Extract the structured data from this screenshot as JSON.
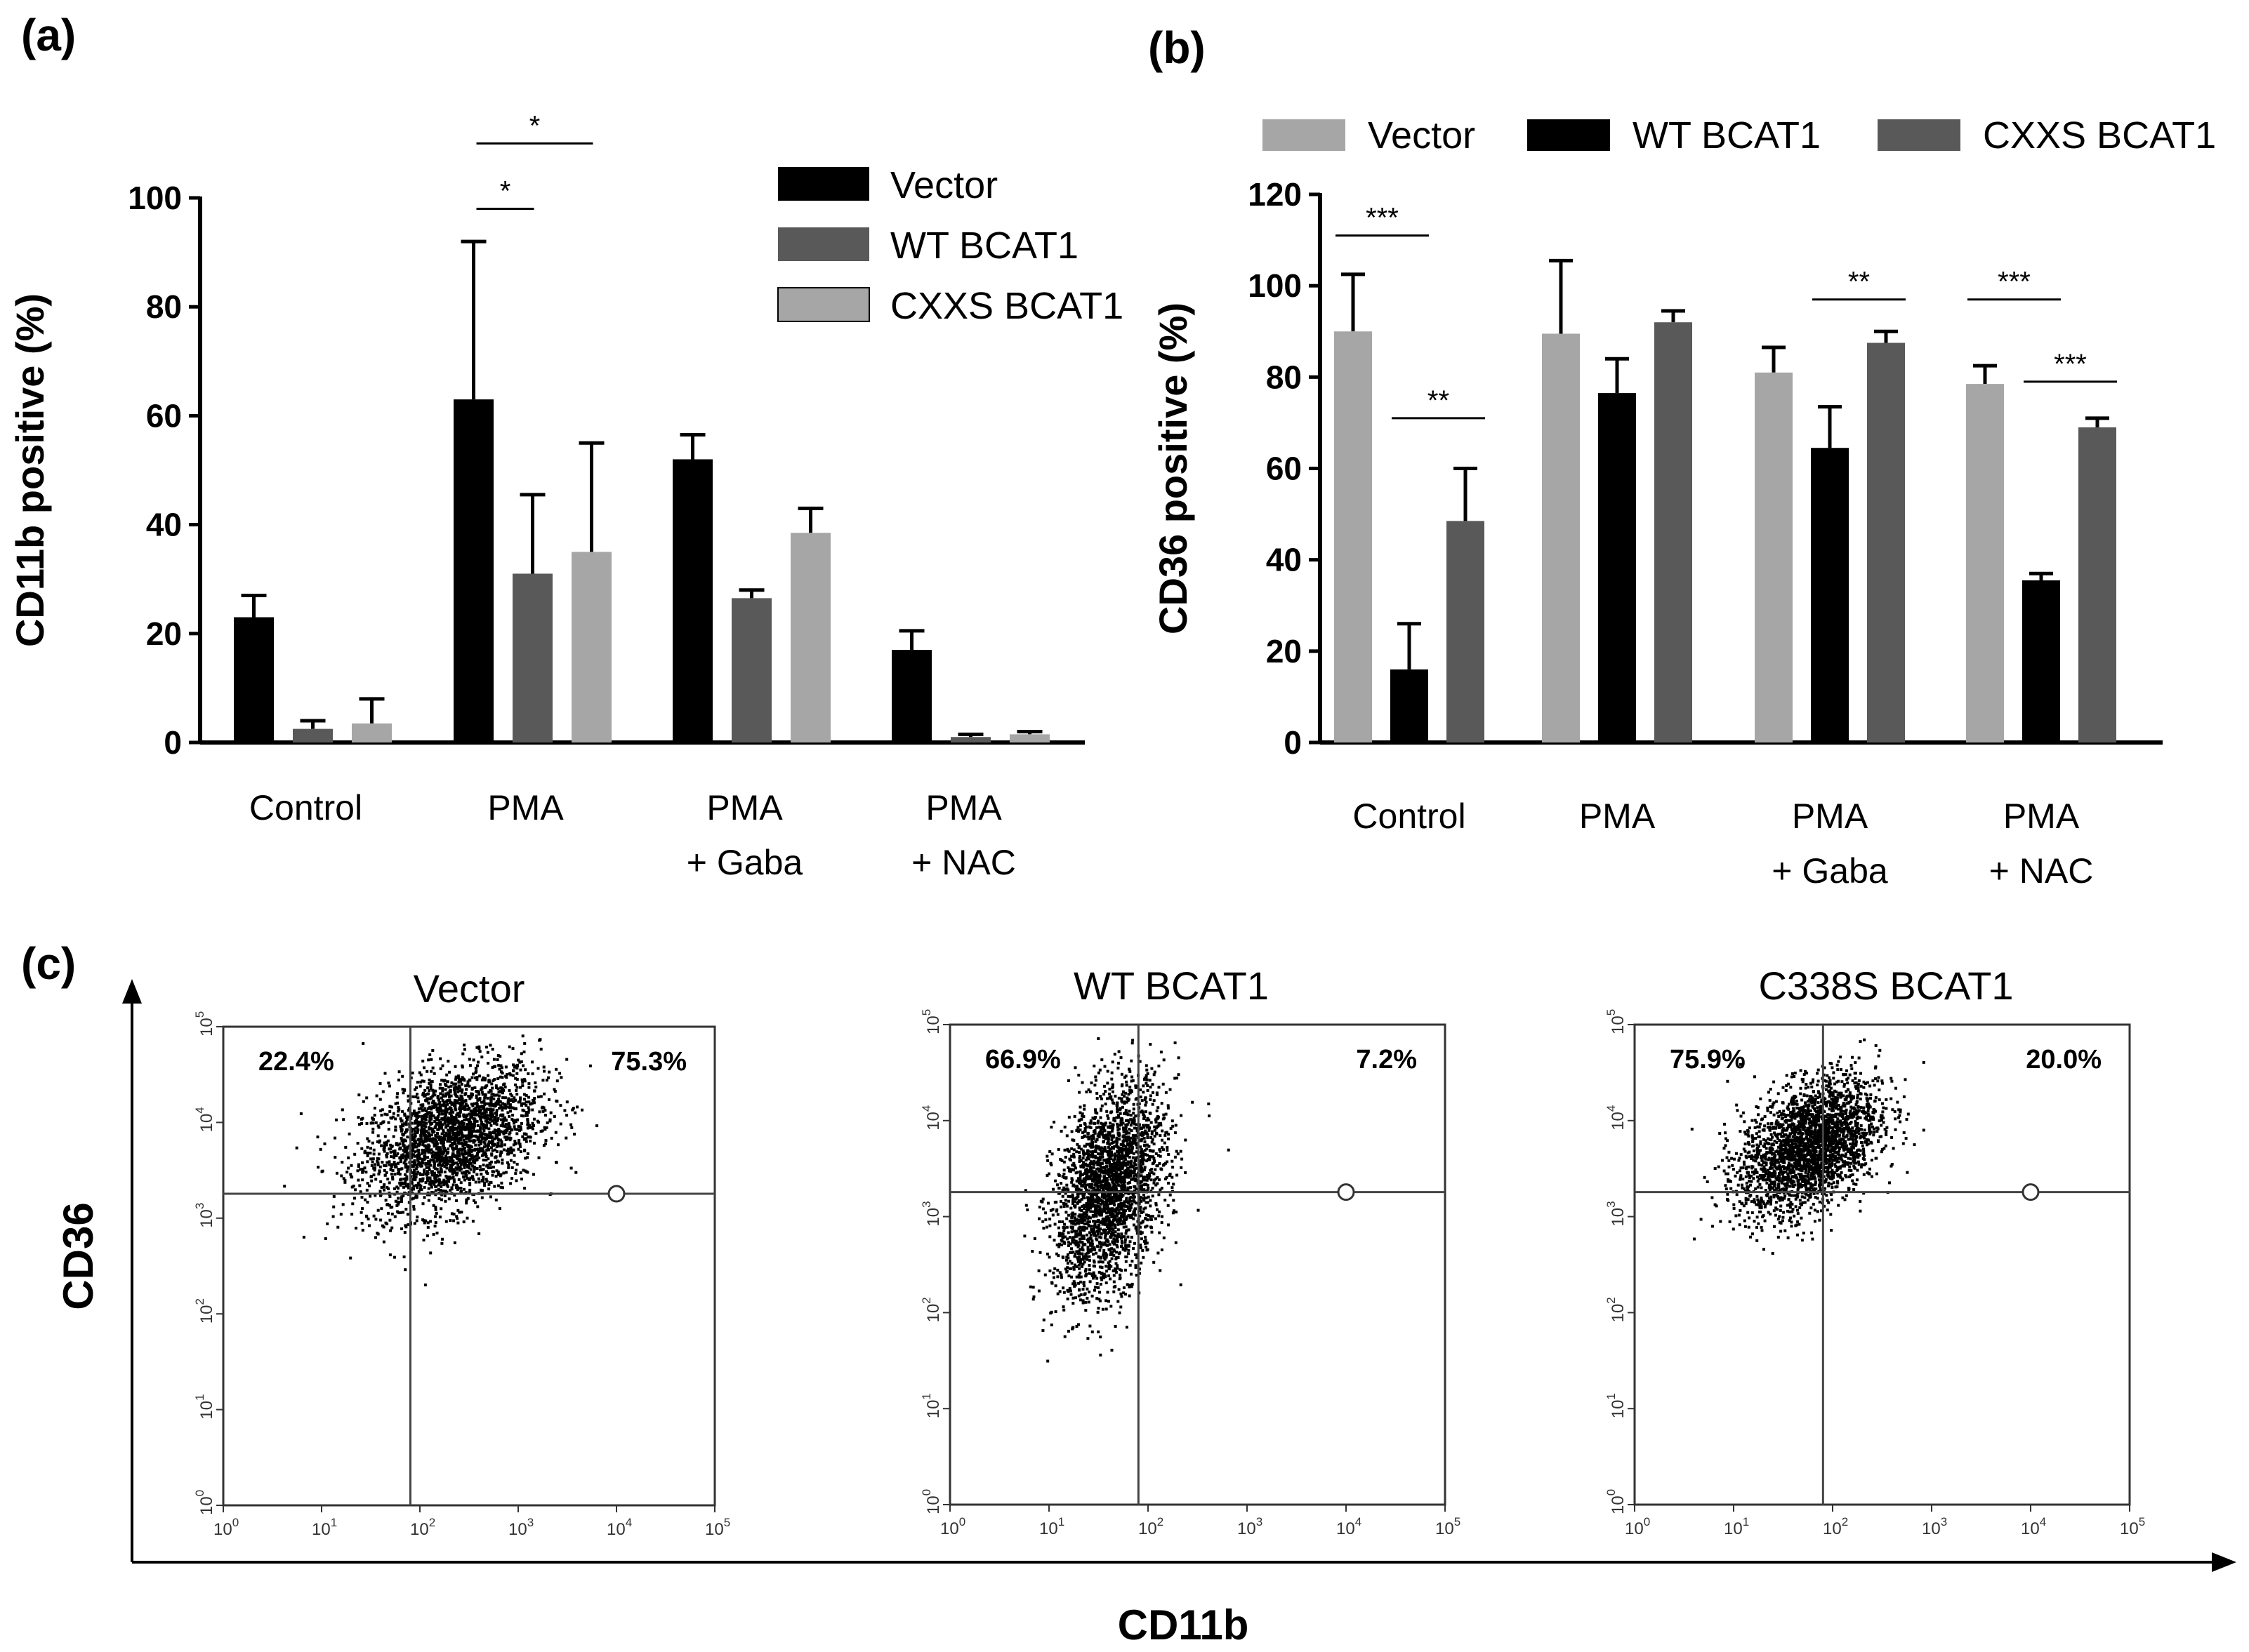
{
  "figure": {
    "panel_a_letter": "(a)",
    "panel_b_letter": "(b)",
    "panel_c_letter": "(c)"
  },
  "chart_data": [
    {
      "id": "a",
      "type": "bar",
      "ylabel": "CD11b positive (%)",
      "ylim": [
        0,
        100
      ],
      "yticks": [
        0,
        20,
        40,
        60,
        80,
        100
      ],
      "categories": [
        [
          "Control"
        ],
        [
          "PMA"
        ],
        [
          "PMA",
          "+ Gaba"
        ],
        [
          "PMA",
          "+ NAC"
        ]
      ],
      "legend_position": "top-right",
      "series": [
        {
          "name": "Vector",
          "color": "#000000",
          "values": [
            23,
            63,
            52,
            17
          ],
          "errors": [
            4,
            29,
            4.5,
            3.5
          ]
        },
        {
          "name": "WT BCAT1",
          "color": "#595959",
          "values": [
            2.5,
            31,
            26.5,
            1
          ],
          "errors": [
            1.5,
            14.5,
            1.5,
            0.5
          ]
        },
        {
          "name": "CXXS BCAT1",
          "color": "#a6a6a6",
          "values": [
            3.5,
            35,
            38.5,
            1.5
          ],
          "errors": [
            4.5,
            20,
            4.5,
            0.5
          ]
        }
      ],
      "significance": [
        {
          "label": "*",
          "group": 1,
          "from": 0,
          "to": 1,
          "y": 98
        },
        {
          "label": "*",
          "group": 1,
          "from": 0,
          "to": 2,
          "y": 110
        }
      ]
    },
    {
      "id": "b",
      "type": "bar",
      "ylabel": "CD36 positive (%)",
      "ylim": [
        0,
        120
      ],
      "yticks": [
        0,
        20,
        40,
        60,
        80,
        100,
        120
      ],
      "categories": [
        [
          "Control"
        ],
        [
          "PMA"
        ],
        [
          "PMA",
          "+ Gaba"
        ],
        [
          "PMA",
          "+ NAC"
        ]
      ],
      "legend_position": "top",
      "series": [
        {
          "name": "Vector",
          "color": "#a6a6a6",
          "values": [
            90,
            89.5,
            81,
            78.5
          ],
          "errors": [
            12.5,
            16,
            5.5,
            4
          ]
        },
        {
          "name": "WT BCAT1",
          "color": "#000000",
          "values": [
            16,
            76.5,
            64.5,
            35.5
          ],
          "errors": [
            10,
            7.5,
            9,
            1.5
          ]
        },
        {
          "name": "CXXS BCAT1",
          "color": "#595959",
          "values": [
            48.5,
            92,
            87.5,
            69
          ],
          "errors": [
            11.5,
            2.5,
            2.5,
            2
          ]
        }
      ],
      "significance": [
        {
          "label": "***",
          "group": 0,
          "from": 0,
          "to": 1,
          "y": 111
        },
        {
          "label": "**",
          "group": 0,
          "from": 1,
          "to": 2,
          "y": 71
        },
        {
          "label": "**",
          "group": 2,
          "from": 1,
          "to": 2,
          "y": 97
        },
        {
          "label": "***",
          "group": 3,
          "from": 0,
          "to": 1,
          "y": 97
        },
        {
          "label": "***",
          "group": 3,
          "from": 1,
          "to": 2,
          "y": 79
        }
      ]
    },
    {
      "id": "c",
      "type": "scatter",
      "xlabel": "CD11b",
      "ylabel": "CD36",
      "scale": "log",
      "xlim": [
        1,
        100000
      ],
      "ylim": [
        1,
        100000
      ],
      "tick_base": "10",
      "x_tick_exponents": [
        "0",
        "1",
        "2",
        "3",
        "4",
        "5"
      ],
      "y_tick_exponents": [
        "0",
        "1",
        "2",
        "3",
        "4",
        "5"
      ],
      "gate": {
        "x": 80,
        "y": 1800
      },
      "plots": [
        {
          "title": "Vector",
          "upper_left": "22.4%",
          "upper_right": "75.3%",
          "center_log": [
            2.3,
            3.85
          ],
          "spread": [
            0.45,
            0.36
          ],
          "slope": 0.55
        },
        {
          "title": "WT BCAT1",
          "upper_left": "66.9%",
          "upper_right": "7.2%",
          "center_log": [
            1.6,
            3.3
          ],
          "spread": [
            0.28,
            0.5
          ],
          "slope": 1.2
        },
        {
          "title": "C338S BCAT1",
          "upper_left": "75.9%",
          "upper_right": "20.0%",
          "center_log": [
            1.75,
            3.75
          ],
          "spread": [
            0.35,
            0.32
          ],
          "slope": 0.7
        }
      ]
    }
  ]
}
